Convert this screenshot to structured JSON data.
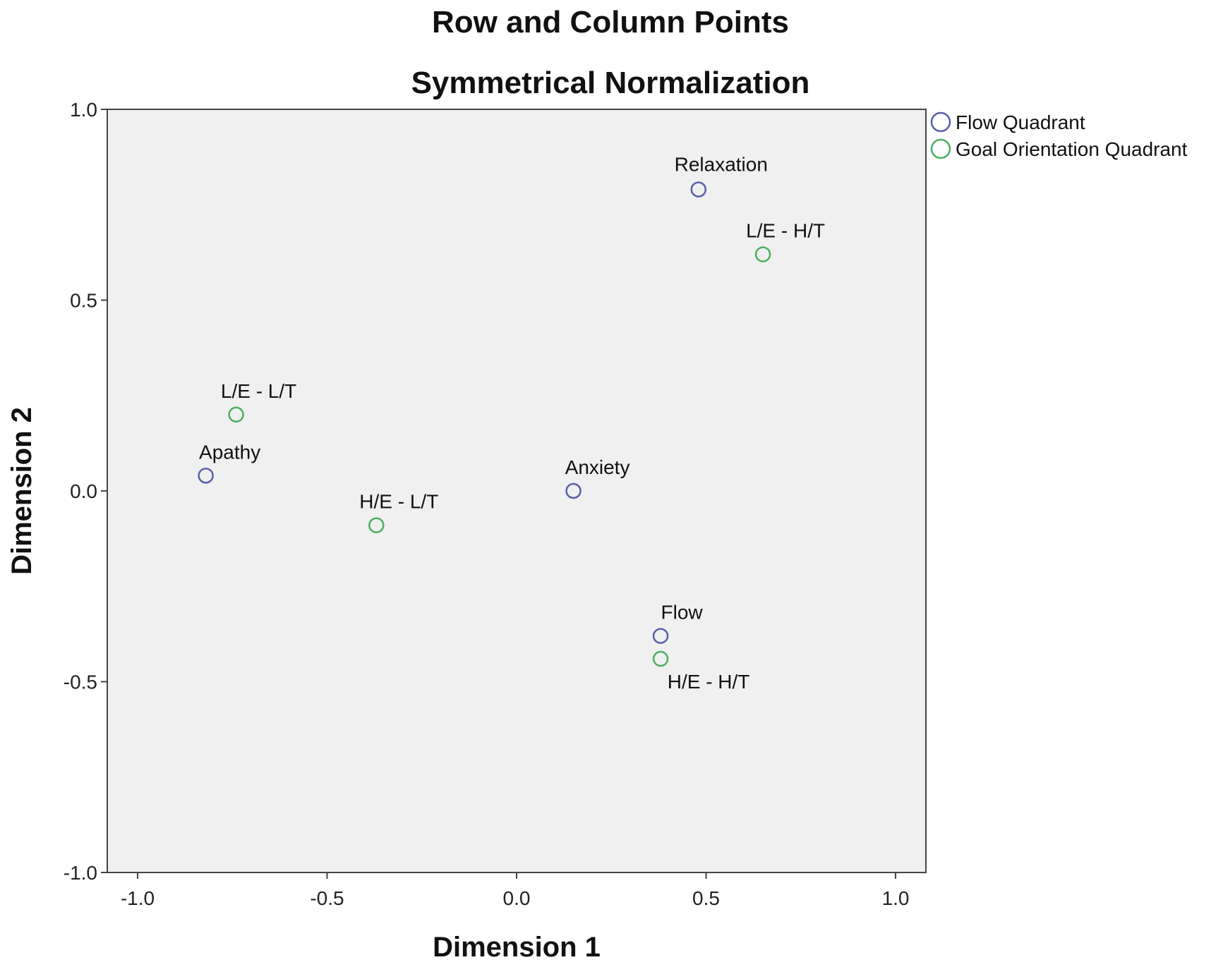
{
  "chart_data": {
    "type": "scatter",
    "title": "Row and Column Points",
    "subtitle": "Symmetrical Normalization",
    "xlabel": "Dimension 1",
    "ylabel": "Dimension 2",
    "xlim": [
      -1.08,
      1.08
    ],
    "ylim": [
      -1.0,
      1.0
    ],
    "xticks": [
      "-1.0",
      "-0.5",
      "0.0",
      "0.5",
      "1.0"
    ],
    "yticks": [
      "1.0",
      "0.5",
      "0.0",
      "-0.5",
      "-1.0"
    ],
    "grid": false,
    "legend_position": "top-right outside",
    "background_color": "#f0f0f0",
    "series": [
      {
        "name": "Flow Quadrant",
        "color": "#5a5fa8",
        "marker": "open-circle",
        "points": [
          {
            "label": "Relaxation",
            "x": 0.48,
            "y": 0.79
          },
          {
            "label": "Apathy",
            "x": -0.82,
            "y": 0.04
          },
          {
            "label": "Anxiety",
            "x": 0.15,
            "y": 0.0
          },
          {
            "label": "Flow",
            "x": 0.38,
            "y": -0.38
          }
        ]
      },
      {
        "name": "Goal Orientation Quadrant",
        "color": "#4caf62",
        "marker": "open-circle",
        "points": [
          {
            "label": "L/E - H/T",
            "x": 0.65,
            "y": 0.62
          },
          {
            "label": "L/E - L/T",
            "x": -0.74,
            "y": 0.2
          },
          {
            "label": "H/E - L/T",
            "x": -0.37,
            "y": -0.09
          },
          {
            "label": "H/E - H/T",
            "x": 0.38,
            "y": -0.44
          }
        ]
      }
    ]
  }
}
